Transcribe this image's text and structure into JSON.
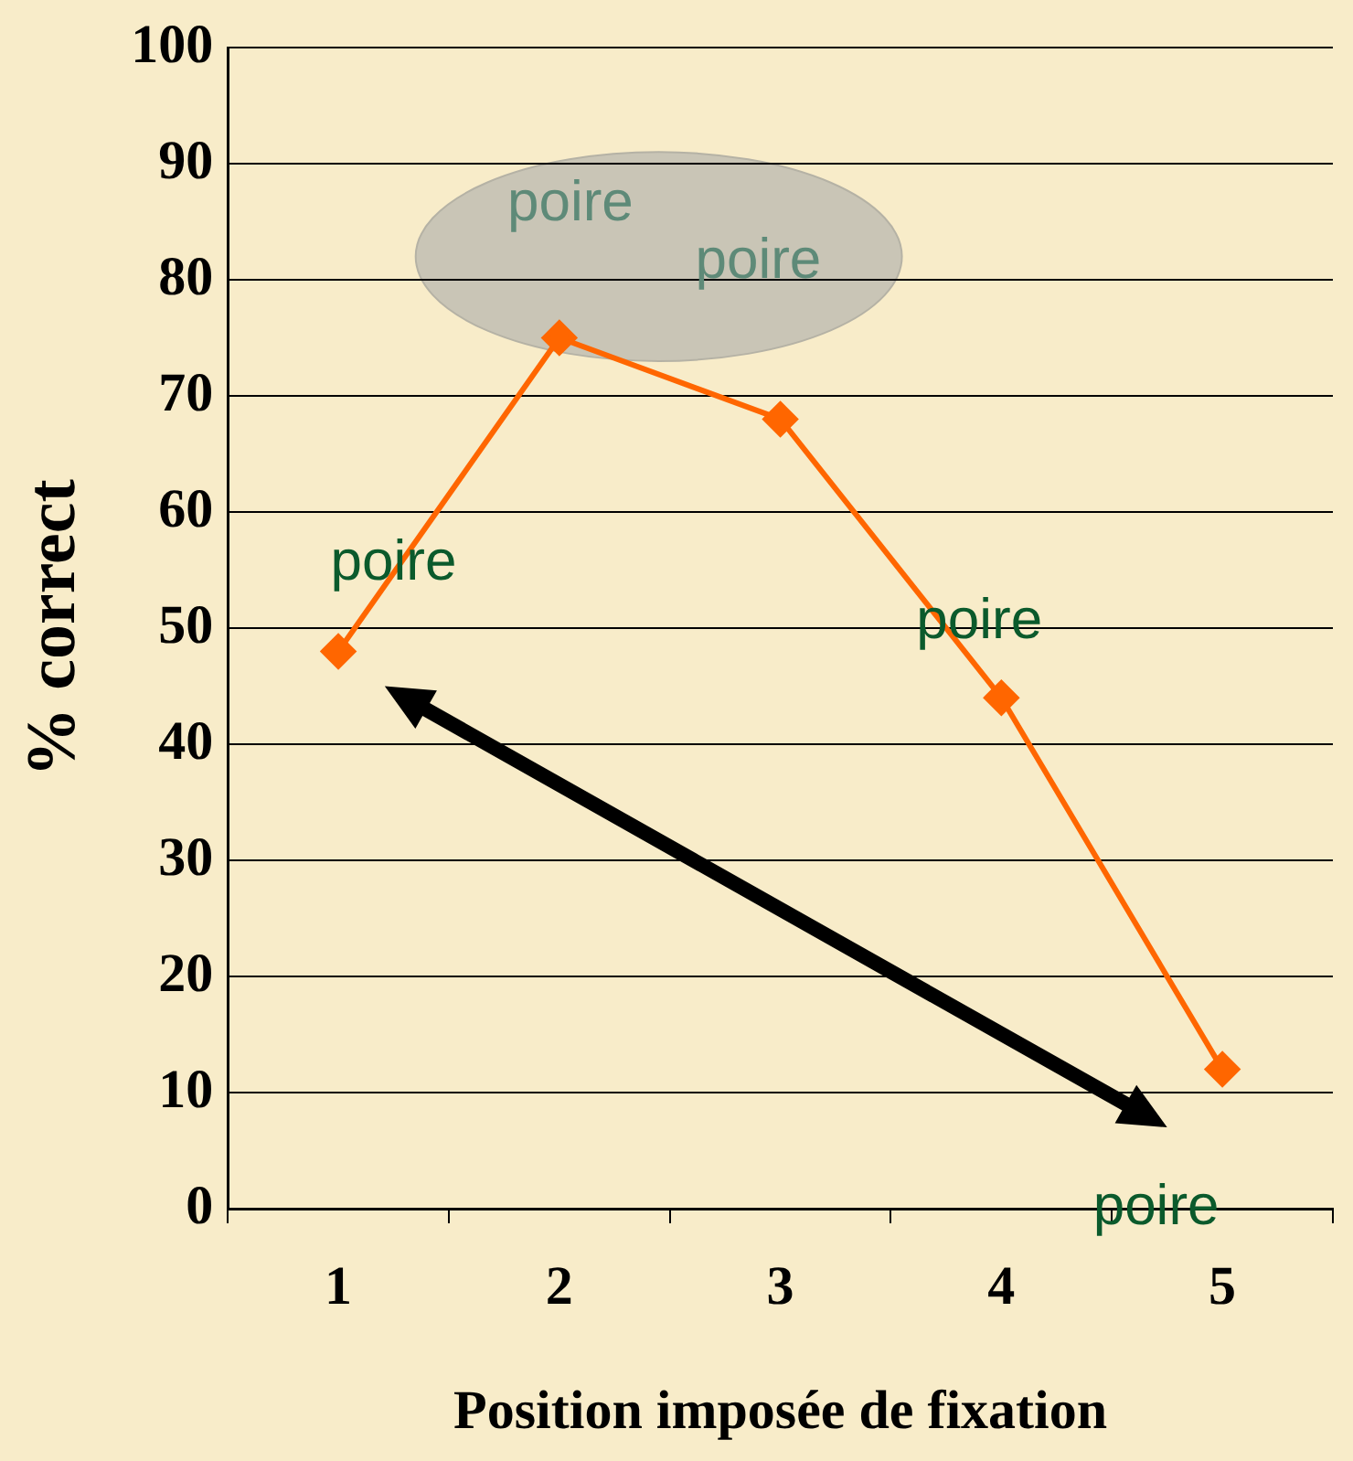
{
  "chart_data": {
    "type": "line",
    "xlabel": "Position imposée de fixation",
    "ylabel": "% correct",
    "categories": [
      "1",
      "2",
      "3",
      "4",
      "5"
    ],
    "series": [
      {
        "color": "#ff6600",
        "values": [
          48,
          75,
          68,
          44,
          12
        ]
      }
    ],
    "ylim": [
      0,
      100
    ],
    "yticks": [
      0,
      10,
      20,
      30,
      40,
      50,
      60,
      70,
      80,
      90,
      100
    ],
    "grid": "y",
    "legend": false,
    "marker": "diamond",
    "line_style": "solid",
    "annotations": [
      "poire",
      "poire",
      "poire",
      "poire",
      "poire"
    ]
  }
}
